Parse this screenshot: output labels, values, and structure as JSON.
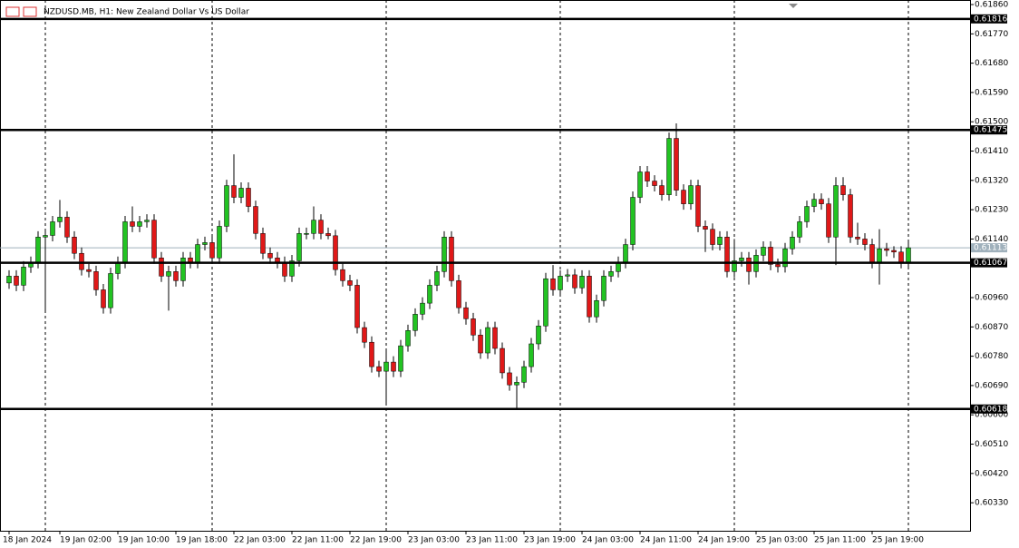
{
  "chart_data": {
    "type": "candlestick",
    "title": "NZDUSD.MB, H1:  New Zealand Dollar Vs US Dollar",
    "x": [
      "18 Jan 2024",
      null,
      null,
      null,
      null,
      null,
      null,
      "19 Jan 02:00",
      null,
      null,
      null,
      null,
      null,
      null,
      null,
      "19 Jan 10:00",
      null,
      null,
      null,
      null,
      null,
      null,
      null,
      "19 Jan 18:00",
      null,
      null,
      null,
      null,
      null,
      null,
      null,
      "22 Jan 03:00",
      null,
      null,
      null,
      null,
      null,
      null,
      null,
      "22 Jan 11:00",
      null,
      null,
      null,
      null,
      null,
      null,
      null,
      "22 Jan 19:00",
      null,
      null,
      null,
      null,
      null,
      null,
      null,
      "23 Jan 03:00",
      null,
      null,
      null,
      null,
      null,
      null,
      null,
      "23 Jan 11:00",
      null,
      null,
      null,
      null,
      null,
      null,
      null,
      "23 Jan 19:00",
      null,
      null,
      null,
      null,
      null,
      null,
      null,
      "24 Jan 03:00",
      null,
      null,
      null,
      null,
      null,
      null,
      null,
      "24 Jan 11:00",
      null,
      null,
      null,
      null,
      null,
      null,
      null,
      "24 Jan 19:00",
      null,
      null,
      null,
      null,
      null,
      null,
      null,
      "25 Jan 03:00",
      null,
      null,
      null,
      null,
      null,
      null,
      null,
      "25 Jan 11:00",
      null,
      null,
      null,
      null,
      null,
      null,
      null,
      "25 Jan 19:00",
      null,
      null,
      null,
      null,
      null
    ],
    "open": [
      0.61005,
      0.61026,
      0.60998,
      0.61054,
      0.61068,
      0.61146,
      0.61151,
      0.61193,
      0.61207,
      0.61146,
      0.61096,
      0.61046,
      0.6104,
      0.60984,
      0.60929,
      0.61034,
      0.61068,
      0.61193,
      0.61179,
      0.61193,
      0.61198,
      0.61082,
      0.61026,
      0.6104,
      0.61012,
      0.61082,
      0.61068,
      0.61123,
      0.61129,
      0.61082,
      0.61179,
      0.61304,
      0.61268,
      0.61296,
      0.6124,
      0.61157,
      0.61096,
      0.61082,
      0.61068,
      0.61026,
      0.61073,
      0.61157,
      0.61157,
      0.61198,
      0.61157,
      0.6115,
      0.61046,
      0.61012,
      0.60998,
      0.60868,
      0.60823,
      0.60748,
      0.60734,
      0.60762,
      0.60734,
      0.60812,
      0.60859,
      0.60909,
      0.60943,
      0.60998,
      0.6104,
      0.61146,
      0.61012,
      0.60929,
      0.60895,
      0.60845,
      0.6079,
      0.60868,
      0.60804,
      0.60729,
      0.60692,
      0.607,
      0.60748,
      0.60818,
      0.60873,
      0.61018,
      0.60984,
      0.61026,
      0.6103,
      0.6099,
      0.61026,
      0.60901,
      0.60951,
      0.61026,
      0.6104,
      0.61068,
      0.61123,
      0.61268,
      0.61346,
      0.61318,
      0.61304,
      0.61276,
      0.61449,
      0.6129,
      0.61248,
      0.61304,
      0.61179,
      0.6117,
      0.61123,
      0.61146,
      0.6104,
      0.61073,
      0.61082,
      0.6104,
      0.6109,
      0.61115,
      0.61062,
      0.61055,
      0.6111,
      0.61146,
      0.61193,
      0.6124,
      0.61262,
      0.61248,
      0.61146,
      0.61304,
      0.61276,
      0.61146,
      0.6114,
      0.61123,
      0.61068,
      0.6111,
      0.61105,
      0.611,
      0.61068
    ],
    "high": [
      0.61044,
      0.61044,
      0.61072,
      0.61086,
      0.61164,
      0.61169,
      0.61211,
      0.6126,
      0.61225,
      0.61164,
      0.61114,
      0.61064,
      0.61058,
      0.61002,
      0.61052,
      0.61086,
      0.61211,
      0.6124,
      0.61211,
      0.61216,
      0.61216,
      0.611,
      0.61058,
      0.61058,
      0.611,
      0.611,
      0.61141,
      0.61147,
      0.61147,
      0.61197,
      0.61322,
      0.614,
      0.61314,
      0.61314,
      0.61258,
      0.61175,
      0.61114,
      0.611,
      0.61086,
      0.61091,
      0.61175,
      0.61175,
      0.6124,
      0.61216,
      0.61175,
      0.61168,
      0.61064,
      0.6103,
      0.61016,
      0.60886,
      0.60841,
      0.60766,
      0.608,
      0.6078,
      0.6083,
      0.60877,
      0.60927,
      0.60961,
      0.61016,
      0.61058,
      0.61164,
      0.61164,
      0.6103,
      0.60947,
      0.60913,
      0.60863,
      0.60886,
      0.60886,
      0.60822,
      0.60747,
      0.60718,
      0.60766,
      0.60836,
      0.60891,
      0.61036,
      0.6106,
      0.61044,
      0.61048,
      0.61048,
      0.61044,
      0.61044,
      0.60969,
      0.61044,
      0.61058,
      0.61086,
      0.61141,
      0.61286,
      0.61364,
      0.61364,
      0.61336,
      0.61322,
      0.61467,
      0.61495,
      0.61308,
      0.61322,
      0.61322,
      0.61197,
      0.61188,
      0.61164,
      0.61164,
      0.6114,
      0.611,
      0.611,
      0.61108,
      0.61133,
      0.61133,
      0.6108,
      0.61128,
      0.61164,
      0.61211,
      0.61258,
      0.6128,
      0.6128,
      0.61266,
      0.6133,
      0.6133,
      0.61294,
      0.6119,
      0.61158,
      0.61141,
      0.6117,
      0.61128,
      0.61118,
      0.61118,
      0.61131
    ],
    "low": [
      0.60987,
      0.6098,
      0.6098,
      0.61036,
      0.6105,
      0.6092,
      0.61133,
      0.61175,
      0.61128,
      0.61078,
      0.61028,
      0.61022,
      0.60966,
      0.60911,
      0.60911,
      0.61016,
      0.6105,
      0.61161,
      0.61161,
      0.61175,
      0.61064,
      0.61008,
      0.6092,
      0.60994,
      0.60994,
      0.6105,
      0.6105,
      0.61105,
      0.61064,
      0.61064,
      0.61161,
      0.6125,
      0.6125,
      0.61222,
      0.61139,
      0.61078,
      0.61064,
      0.6105,
      0.61008,
      0.61008,
      0.61055,
      0.61139,
      0.61139,
      0.61139,
      0.61139,
      0.61028,
      0.60994,
      0.6098,
      0.6085,
      0.60805,
      0.6073,
      0.60716,
      0.6063,
      0.60716,
      0.60716,
      0.60794,
      0.60841,
      0.60891,
      0.60925,
      0.6098,
      0.61022,
      0.60994,
      0.60911,
      0.60877,
      0.60827,
      0.60772,
      0.60772,
      0.60786,
      0.60711,
      0.60674,
      0.6062,
      0.60682,
      0.6073,
      0.608,
      0.60855,
      0.60966,
      0.60966,
      0.61008,
      0.60972,
      0.60972,
      0.60883,
      0.60883,
      0.60933,
      0.61008,
      0.61022,
      0.6105,
      0.61105,
      0.6125,
      0.613,
      0.61286,
      0.61258,
      0.61258,
      0.61272,
      0.6123,
      0.6123,
      0.61161,
      0.611,
      0.61105,
      0.61105,
      0.61022,
      0.61022,
      0.61055,
      0.61,
      0.61022,
      0.61072,
      0.61044,
      0.61037,
      0.61037,
      0.61092,
      0.61128,
      0.61175,
      0.61222,
      0.6123,
      0.61128,
      0.6106,
      0.61258,
      0.61128,
      0.61122,
      0.61105,
      0.6105,
      0.61,
      0.61087,
      0.61082,
      0.6105,
      0.6105
    ],
    "close": [
      0.61026,
      0.60998,
      0.61054,
      0.61068,
      0.61146,
      0.61151,
      0.61193,
      0.61207,
      0.61146,
      0.61096,
      0.61046,
      0.6104,
      0.60984,
      0.60929,
      0.61034,
      0.61068,
      0.61193,
      0.61179,
      0.61193,
      0.61198,
      0.61082,
      0.61026,
      0.6104,
      0.61012,
      0.61082,
      0.61068,
      0.61123,
      0.61129,
      0.61082,
      0.61179,
      0.61304,
      0.61268,
      0.61296,
      0.6124,
      0.61157,
      0.61096,
      0.61082,
      0.61068,
      0.61026,
      0.61073,
      0.61157,
      0.61157,
      0.61198,
      0.61157,
      0.6115,
      0.61046,
      0.61012,
      0.60998,
      0.60868,
      0.60823,
      0.60748,
      0.60734,
      0.60762,
      0.60734,
      0.60812,
      0.60859,
      0.60909,
      0.60943,
      0.60998,
      0.6104,
      0.61146,
      0.61012,
      0.60929,
      0.60895,
      0.60845,
      0.6079,
      0.60868,
      0.60804,
      0.60729,
      0.60692,
      0.607,
      0.60748,
      0.60818,
      0.60873,
      0.61018,
      0.60984,
      0.61026,
      0.6103,
      0.6099,
      0.61026,
      0.60901,
      0.60951,
      0.61026,
      0.6104,
      0.61068,
      0.61123,
      0.61268,
      0.61346,
      0.61318,
      0.61304,
      0.61276,
      0.61449,
      0.6129,
      0.61248,
      0.61304,
      0.61179,
      0.6117,
      0.61123,
      0.61146,
      0.6104,
      0.61073,
      0.61082,
      0.6104,
      0.6109,
      0.61115,
      0.61062,
      0.61055,
      0.6111,
      0.61146,
      0.61193,
      0.6124,
      0.61262,
      0.61248,
      0.61146,
      0.61304,
      0.61276,
      0.61146,
      0.6114,
      0.61123,
      0.61068,
      0.6111,
      0.61105,
      0.611,
      0.61068,
      0.61113
    ],
    "up_color": "#22c322",
    "down_color": "#e01818",
    "ylim": [
      0.60244,
      0.61874
    ],
    "yticks": [
      {
        "value": 0.6186,
        "label": "0.61860"
      },
      {
        "value": 0.6177,
        "label": "0.61770"
      },
      {
        "value": 0.6168,
        "label": "0.61680"
      },
      {
        "value": 0.6159,
        "label": "0.61590"
      },
      {
        "value": 0.615,
        "label": "0.61500"
      },
      {
        "value": 0.6141,
        "label": "0.61410"
      },
      {
        "value": 0.6132,
        "label": "0.61320"
      },
      {
        "value": 0.6123,
        "label": "0.61230"
      },
      {
        "value": 0.6114,
        "label": "0.61140"
      },
      {
        "value": 0.6096,
        "label": "0.60960"
      },
      {
        "value": 0.6087,
        "label": "0.60870"
      },
      {
        "value": 0.6078,
        "label": "0.60780"
      },
      {
        "value": 0.6069,
        "label": "0.60690"
      },
      {
        "value": 0.606,
        "label": "0.60600"
      },
      {
        "value": 0.6051,
        "label": "0.60510"
      },
      {
        "value": 0.6042,
        "label": "0.60420"
      },
      {
        "value": 0.6033,
        "label": "0.60330"
      }
    ],
    "levels": [
      {
        "value": 0.61816,
        "label": "0.61816"
      },
      {
        "value": 0.61475,
        "label": "0.61475"
      },
      {
        "value": 0.61067,
        "label": "0.61067"
      },
      {
        "value": 0.60618,
        "label": "0.60618"
      }
    ],
    "current": {
      "value": 0.61113,
      "label": "0.61113"
    }
  }
}
